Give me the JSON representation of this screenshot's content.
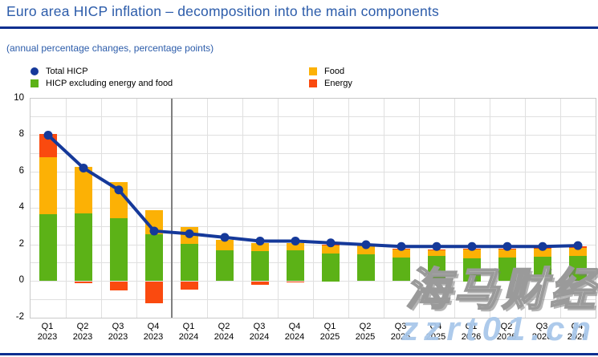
{
  "header": {
    "title": "Euro area HICP inflation – decomposition into the main components",
    "subtitle": "(annual percentage changes, percentage points)"
  },
  "legend": {
    "total_hicp": "Total HICP",
    "core": "HICP excluding energy and food",
    "food": "Food",
    "energy": "Energy"
  },
  "watermark": {
    "line1": "海马财经",
    "line2": "zzrt01.cn"
  },
  "colors": {
    "title_blue": "#2c5caa",
    "rule_blue": "#0d2f90",
    "line_blue": "#15399a",
    "core_green": "#5cb217",
    "food_yellow": "#fcb105",
    "energy_red": "#fa4a0f",
    "grid": "#e0e0e0",
    "plot_border": "#c9c9c9",
    "separator": "#7f7f7f",
    "watermark_blue": "#a9c8ea",
    "axis_text": "#000000"
  },
  "chart_data": {
    "type": "bar",
    "stacked": true,
    "title": "Euro area HICP inflation – decomposition into the main components",
    "subtitle": "(annual percentage changes, percentage points)",
    "xlabel": "",
    "ylabel": "annual percentage changes, percentage points",
    "ylim": [
      -2,
      10
    ],
    "yticks": [
      10,
      8,
      6,
      4,
      2,
      0,
      -2
    ],
    "grid_step": 1,
    "grid": true,
    "legend_position": "top",
    "separator_after_index": 3,
    "categories": [
      {
        "q": "Q1",
        "year": "2023"
      },
      {
        "q": "Q2",
        "year": "2023"
      },
      {
        "q": "Q3",
        "year": "2023"
      },
      {
        "q": "Q4",
        "year": "2023"
      },
      {
        "q": "Q1",
        "year": "2024"
      },
      {
        "q": "Q2",
        "year": "2024"
      },
      {
        "q": "Q3",
        "year": "2024"
      },
      {
        "q": "Q4",
        "year": "2024"
      },
      {
        "q": "Q1",
        "year": "2025"
      },
      {
        "q": "Q2",
        "year": "2025"
      },
      {
        "q": "Q3",
        "year": "2025"
      },
      {
        "q": "Q4",
        "year": "2025"
      },
      {
        "q": "Q1",
        "year": "2026"
      },
      {
        "q": "Q2",
        "year": "2026"
      },
      {
        "q": "Q3",
        "year": "2026"
      },
      {
        "q": "Q4",
        "year": "2026"
      }
    ],
    "series": [
      {
        "name": "HICP excluding energy and food",
        "color_key": "core_green",
        "values": [
          3.65,
          3.7,
          3.45,
          2.55,
          2.05,
          1.7,
          1.65,
          1.7,
          1.5,
          1.47,
          1.3,
          1.38,
          1.25,
          1.3,
          1.33,
          1.38
        ]
      },
      {
        "name": "Food",
        "color_key": "food_yellow",
        "values": [
          3.15,
          2.55,
          2.0,
          1.35,
          0.9,
          0.57,
          0.45,
          0.4,
          0.45,
          0.52,
          0.43,
          0.35,
          0.53,
          0.48,
          0.48,
          0.45
        ]
      },
      {
        "name": "Energy",
        "color_key": "energy_red",
        "values": [
          1.25,
          -0.1,
          -0.5,
          -1.2,
          -0.45,
          0.0,
          -0.18,
          -0.05,
          0.07,
          0.05,
          0.07,
          0.02,
          0.02,
          0.02,
          0.02,
          0.1
        ]
      }
    ],
    "line": {
      "name": "Total HICP",
      "color_key": "line_blue",
      "values": [
        8.0,
        6.2,
        5.0,
        2.75,
        2.6,
        2.4,
        2.2,
        2.2,
        2.1,
        2.0,
        1.9,
        1.9,
        1.9,
        1.9,
        1.9,
        1.95
      ]
    }
  }
}
